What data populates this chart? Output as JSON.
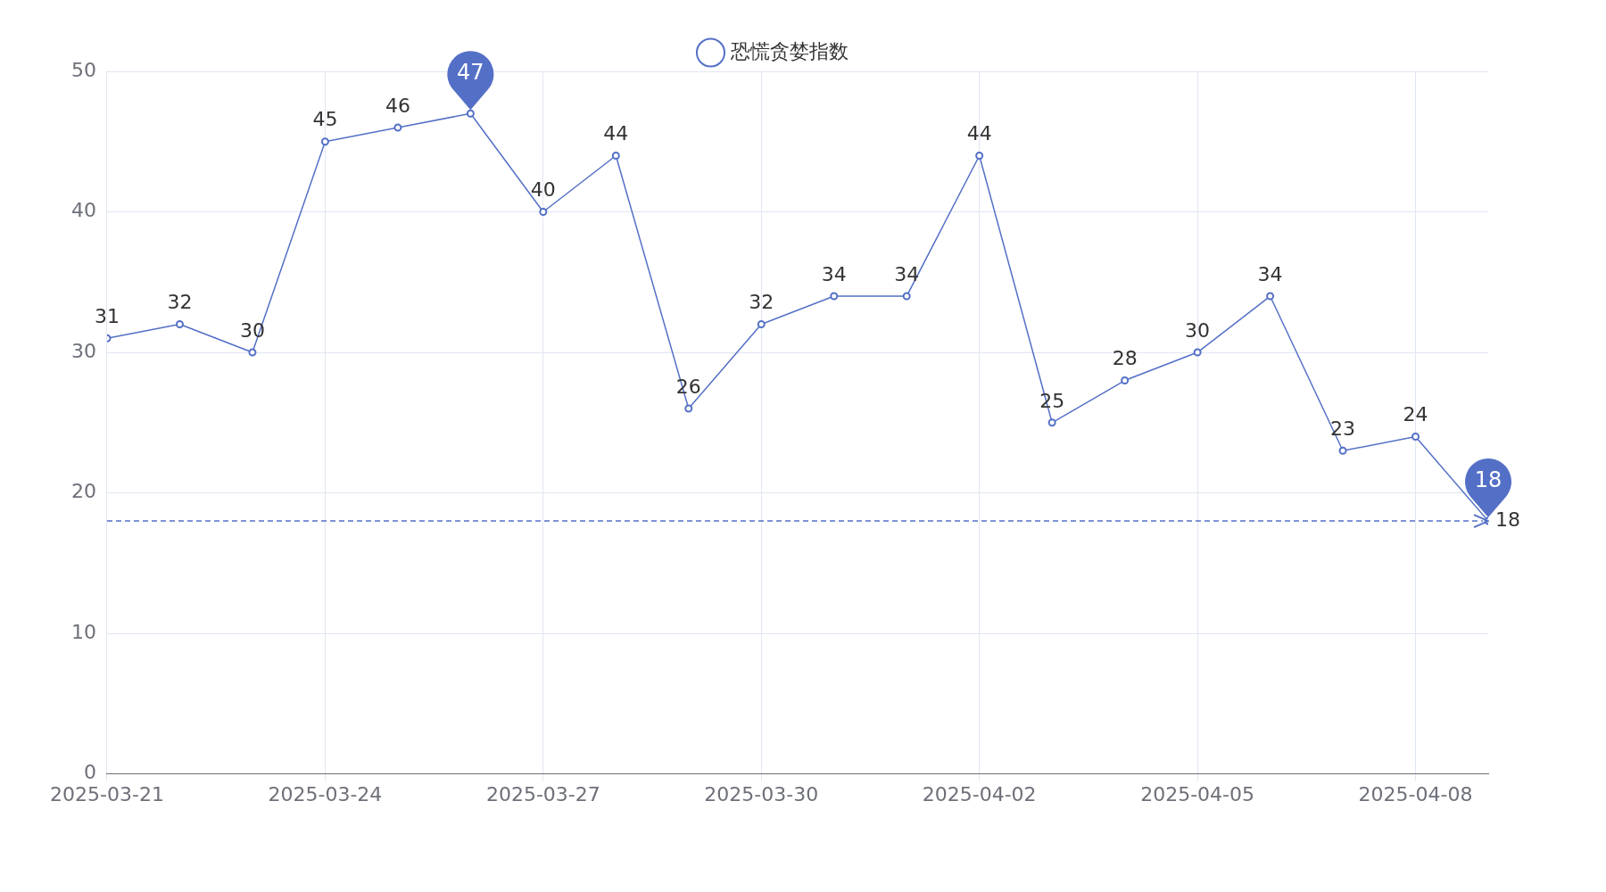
{
  "chart_data": {
    "type": "line",
    "x": [
      "2025-03-21",
      "2025-03-22",
      "2025-03-23",
      "2025-03-24",
      "2025-03-25",
      "2025-03-26",
      "2025-03-27",
      "2025-03-28",
      "2025-03-29",
      "2025-03-30",
      "2025-03-31",
      "2025-04-01",
      "2025-04-02",
      "2025-04-03",
      "2025-04-04",
      "2025-04-05",
      "2025-04-06",
      "2025-04-07",
      "2025-04-08",
      "2025-04-09"
    ],
    "series": [
      {
        "name": "恐慌贪婪指数",
        "color": "#5470c6",
        "values": [
          31,
          32,
          30,
          45,
          46,
          47,
          40,
          44,
          26,
          32,
          34,
          34,
          44,
          25,
          28,
          30,
          34,
          23,
          24,
          18
        ]
      }
    ],
    "xlim": [
      "2025-03-21",
      "2025-04-09"
    ],
    "xticks": [
      "2025-03-21",
      "2025-03-24",
      "2025-03-27",
      "2025-03-30",
      "2025-04-02",
      "2025-04-05",
      "2025-04-08"
    ],
    "ylim": [
      0,
      50
    ],
    "yticks": [
      0,
      10,
      20,
      30,
      40,
      50
    ],
    "ref_lines": [
      {
        "axis": "y",
        "value": 18,
        "label": "18",
        "line_style": "dashed",
        "color": "#5470c6"
      }
    ],
    "data_labels": true,
    "grid": true,
    "legend": "top",
    "marker": "circle",
    "line_style": "solid"
  }
}
